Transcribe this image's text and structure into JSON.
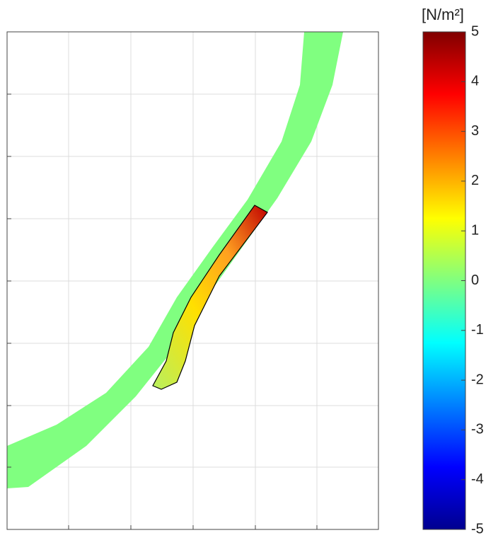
{
  "chart_data": {
    "type": "colormap",
    "colorbar": {
      "label": "[N/m²]",
      "lim": [
        -5,
        5
      ],
      "ticks": [
        -5,
        -4,
        -3,
        -2,
        -1,
        0,
        1,
        2,
        3,
        4,
        5
      ],
      "colormap": "jet"
    }
  }
}
